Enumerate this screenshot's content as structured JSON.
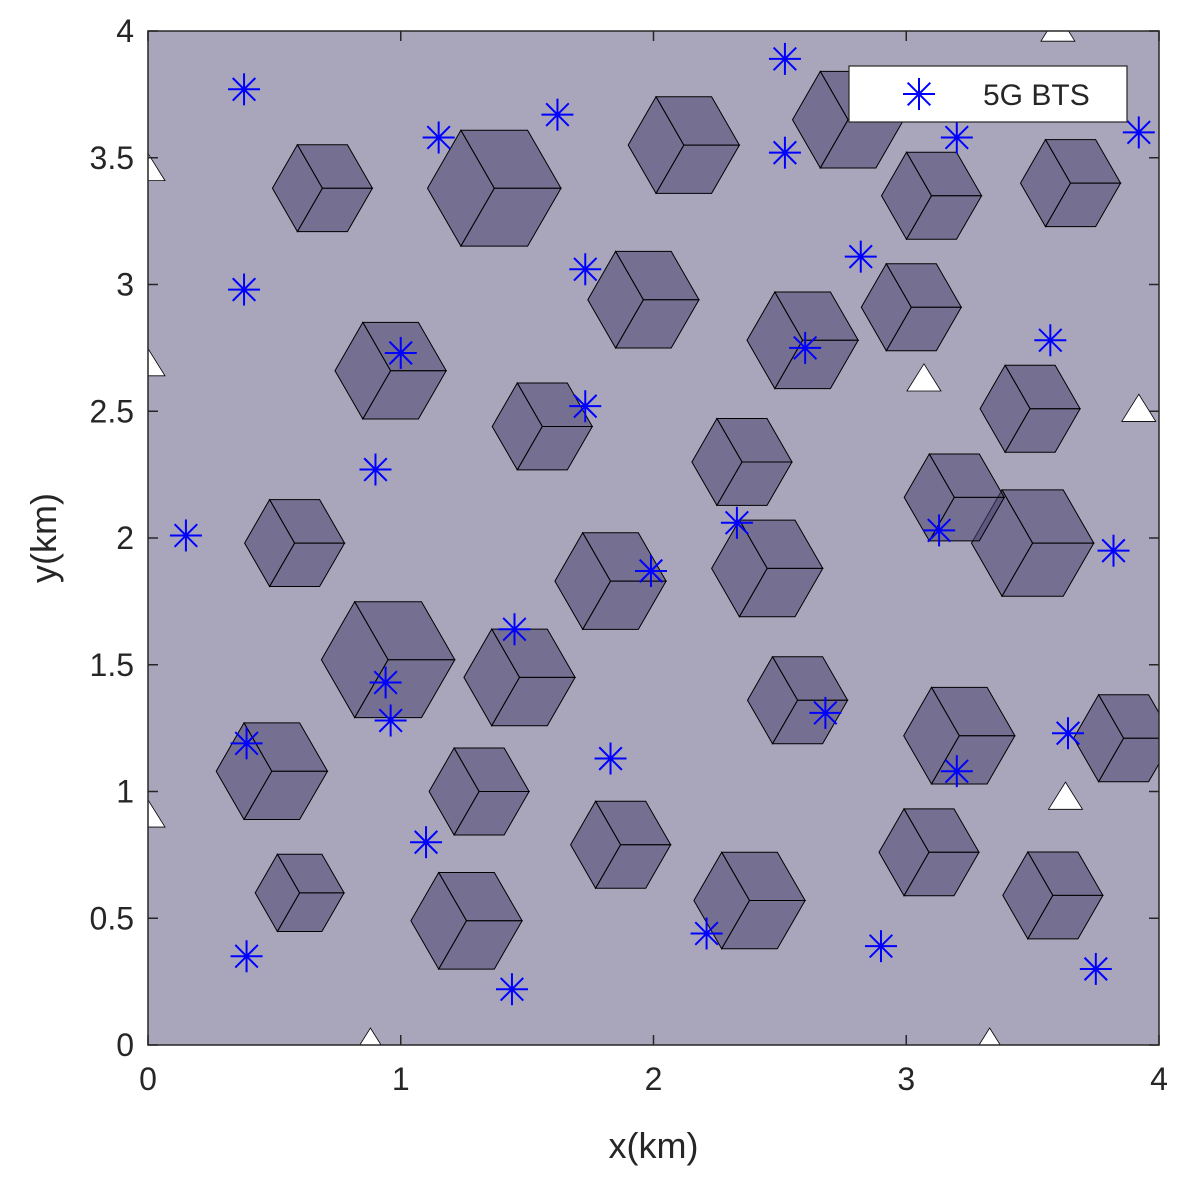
{
  "chart_data": {
    "type": "scatter",
    "xlabel": "x(km)",
    "ylabel": "y(km)",
    "xlim": [
      0,
      4
    ],
    "ylim": [
      0,
      4
    ],
    "xticks": [
      0,
      1,
      2,
      3,
      4
    ],
    "xtick_labels": [
      "0",
      "1",
      "2",
      "3",
      "4"
    ],
    "yticks": [
      0,
      0.5,
      1,
      1.5,
      2,
      2.5,
      3,
      3.5,
      4
    ],
    "ytick_labels": [
      "0",
      "0.5",
      "1",
      "1.5",
      "2",
      "2.5",
      "3",
      "3.5",
      "4"
    ],
    "grid": false,
    "legend_position": "top-right",
    "series": [
      {
        "name": "5G BTS",
        "marker": "asterisk",
        "color": "#0000ff",
        "points": [
          [
            0.38,
            3.77
          ],
          [
            1.15,
            3.58
          ],
          [
            1.62,
            3.67
          ],
          [
            2.52,
            3.89
          ],
          [
            2.52,
            3.52
          ],
          [
            3.2,
            3.58
          ],
          [
            3.92,
            3.6
          ],
          [
            0.38,
            2.98
          ],
          [
            1.73,
            3.06
          ],
          [
            2.82,
            3.11
          ],
          [
            1.0,
            2.73
          ],
          [
            2.6,
            2.75
          ],
          [
            3.57,
            2.78
          ],
          [
            1.73,
            2.52
          ],
          [
            0.9,
            2.27
          ],
          [
            0.15,
            2.01
          ],
          [
            2.33,
            2.06
          ],
          [
            1.99,
            1.87
          ],
          [
            3.13,
            2.03
          ],
          [
            3.82,
            1.95
          ],
          [
            1.45,
            1.64
          ],
          [
            0.94,
            1.43
          ],
          [
            0.96,
            1.28
          ],
          [
            2.68,
            1.31
          ],
          [
            0.39,
            1.19
          ],
          [
            1.83,
            1.13
          ],
          [
            3.64,
            1.23
          ],
          [
            3.2,
            1.08
          ],
          [
            1.1,
            0.8
          ],
          [
            2.21,
            0.44
          ],
          [
            2.9,
            0.39
          ],
          [
            0.39,
            0.35
          ],
          [
            1.44,
            0.22
          ],
          [
            3.75,
            0.3
          ]
        ]
      }
    ],
    "cell_colors": {
      "macro": "#a9a6bc",
      "small": "#4a4470",
      "edge": "#000000"
    },
    "small_cells": [
      [
        0.69,
        3.38,
        0.9
      ],
      [
        1.37,
        3.38,
        1.2
      ],
      [
        2.12,
        3.55,
        1.0
      ],
      [
        2.77,
        3.65,
        1.0
      ],
      [
        3.1,
        3.35,
        0.9
      ],
      [
        3.65,
        3.4,
        0.9
      ],
      [
        0.96,
        2.66,
        1.0
      ],
      [
        1.96,
        2.94,
        1.0
      ],
      [
        2.59,
        2.78,
        1.0
      ],
      [
        3.02,
        2.91,
        0.9
      ],
      [
        1.56,
        2.44,
        0.9
      ],
      [
        2.35,
        2.3,
        0.9
      ],
      [
        3.5,
        1.98,
        1.1
      ],
      [
        3.49,
        2.51,
        0.9
      ],
      [
        0.58,
        1.98,
        0.9
      ],
      [
        1.83,
        1.83,
        1.0
      ],
      [
        2.45,
        1.88,
        1.0
      ],
      [
        3.19,
        2.16,
        0.9
      ],
      [
        0.95,
        1.52,
        1.2
      ],
      [
        1.47,
        1.45,
        1.0
      ],
      [
        2.57,
        1.36,
        0.9
      ],
      [
        3.21,
        1.22,
        1.0
      ],
      [
        3.86,
        1.21,
        0.9
      ],
      [
        0.49,
        1.08,
        1.0
      ],
      [
        1.31,
        1.0,
        0.9
      ],
      [
        1.87,
        0.79,
        0.9
      ],
      [
        3.09,
        0.76,
        0.9
      ],
      [
        0.6,
        0.6,
        0.8
      ],
      [
        1.26,
        0.49,
        1.0
      ],
      [
        2.38,
        0.57,
        1.0
      ],
      [
        3.58,
        0.59,
        0.9
      ]
    ]
  }
}
